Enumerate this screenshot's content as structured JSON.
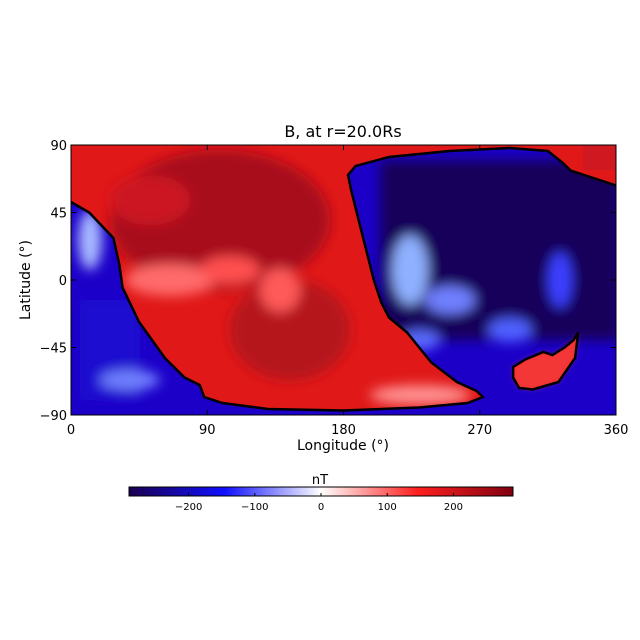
{
  "chart_data": {
    "type": "heatmap",
    "title": "B, at r=20.0Rs",
    "xlabel": "Longitude (°)",
    "ylabel": "Latitude (°)",
    "xlim": [
      0,
      360
    ],
    "ylim": [
      -90,
      90
    ],
    "x_ticks": [
      0,
      90,
      180,
      270,
      360
    ],
    "y_ticks": [
      90,
      45,
      0,
      -45,
      -90
    ],
    "x_tick_labels": [
      "0",
      "90",
      "180",
      "270",
      "360"
    ],
    "y_tick_labels": [
      "90",
      "45",
      "0",
      "−45",
      "−90"
    ],
    "colorbar": {
      "label": "nT",
      "range": [
        -290,
        290
      ],
      "ticks": [
        -200,
        -100,
        0,
        100,
        200
      ],
      "tick_labels": [
        "−200",
        "−100",
        "0",
        "100",
        "200"
      ],
      "colormap": [
        "#1a0050",
        "#1010ff",
        "#ffffff",
        "#ff2020",
        "#800010"
      ]
    },
    "polarity_inversion_line": [
      [
        0,
        52
      ],
      [
        12,
        45
      ],
      [
        28,
        28
      ],
      [
        32,
        10
      ],
      [
        34,
        -5
      ],
      [
        45,
        -28
      ],
      [
        62,
        -52
      ],
      [
        75,
        -65
      ],
      [
        85,
        -70
      ],
      [
        88,
        -78
      ],
      [
        100,
        -82
      ],
      [
        130,
        -86
      ],
      [
        180,
        -87
      ],
      [
        230,
        -85
      ],
      [
        262,
        -82
      ],
      [
        272,
        -78
      ],
      [
        268,
        -74
      ],
      [
        255,
        -68
      ],
      [
        238,
        -55
      ],
      [
        222,
        -35
      ],
      [
        210,
        -25
      ],
      [
        205,
        -15
      ],
      [
        200,
        0
      ],
      [
        195,
        20
      ],
      [
        190,
        40
      ],
      [
        185,
        60
      ],
      [
        183,
        70
      ],
      [
        188,
        76
      ],
      [
        210,
        82
      ],
      [
        250,
        86
      ],
      [
        290,
        88
      ],
      [
        315,
        86
      ],
      [
        325,
        78
      ],
      [
        330,
        73
      ],
      [
        345,
        68
      ],
      [
        360,
        63
      ]
    ],
    "closed_loop": [
      [
        292,
        -58
      ],
      [
        300,
        -53
      ],
      [
        312,
        -48
      ],
      [
        318,
        -50
      ],
      [
        326,
        -45
      ],
      [
        332,
        -40
      ],
      [
        335,
        -35
      ],
      [
        333,
        -52
      ],
      [
        322,
        -68
      ],
      [
        305,
        -73
      ],
      [
        296,
        -72
      ],
      [
        292,
        -65
      ],
      [
        292,
        -58
      ]
    ]
  }
}
